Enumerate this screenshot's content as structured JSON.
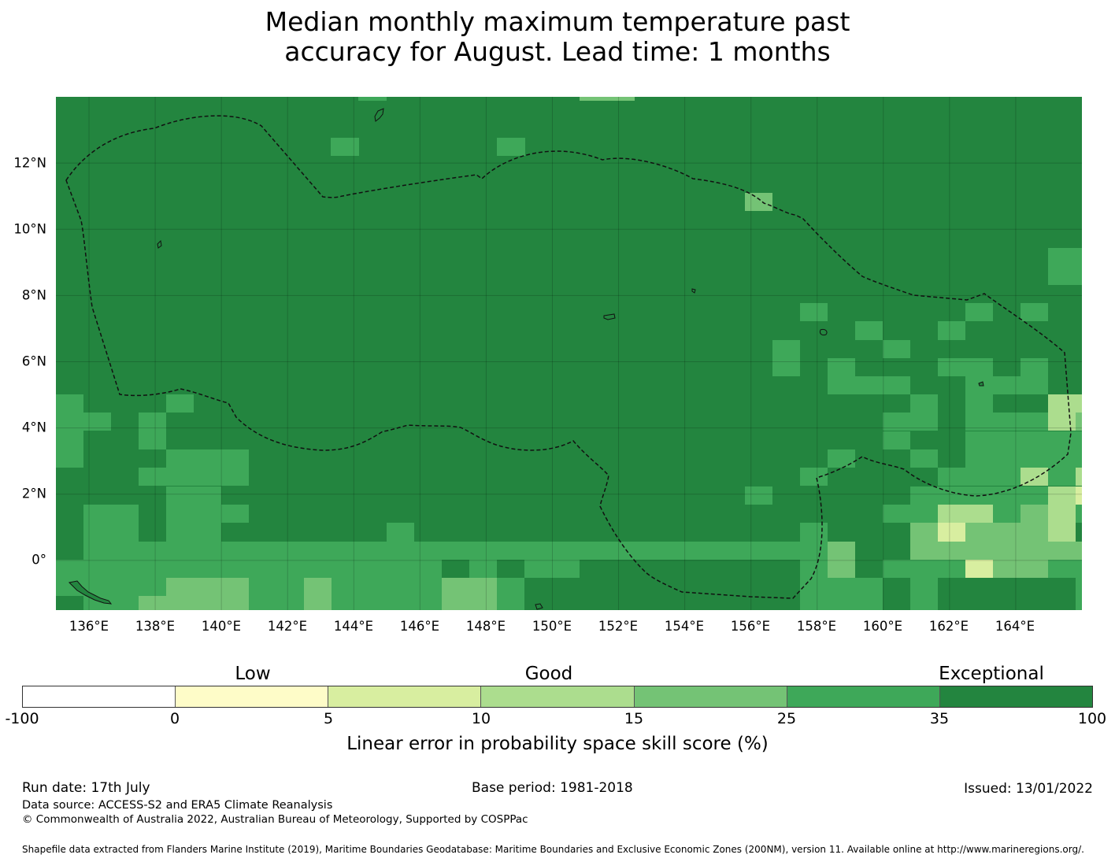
{
  "title": {
    "line1": "Median monthly maximum temperature past",
    "line2": "accuracy for August. Lead time: 1 months"
  },
  "map": {
    "lon_range": [
      135,
      166
    ],
    "lat_range": [
      -1.5,
      14
    ],
    "lon_ticks": [
      "136°E",
      "138°E",
      "140°E",
      "142°E",
      "144°E",
      "146°E",
      "148°E",
      "150°E",
      "152°E",
      "154°E",
      "156°E",
      "158°E",
      "160°E",
      "162°E",
      "164°E"
    ],
    "lat_ticks": [
      "12°N",
      "10°N",
      "8°N",
      "6°N",
      "4°N",
      "2°N",
      "0°"
    ],
    "grid": true,
    "boundary_style": "dashed",
    "base_color": "#23853f",
    "skill_categories_present": [
      "35 to 100",
      "25 to 35",
      "15 to 25",
      "10 to 15",
      "5 to 10"
    ]
  },
  "colorbar": {
    "categories": [
      "Low",
      "Good",
      "Exceptional"
    ],
    "ticks": [
      "-100",
      "0",
      "5",
      "10",
      "15",
      "25",
      "35",
      "100"
    ],
    "colors": [
      "#ffffff",
      "#fefcc8",
      "#d8eea0",
      "#acdd8e",
      "#74c375",
      "#3ea859",
      "#23853f"
    ],
    "label": "Linear error in probability space skill score (%)"
  },
  "footer": {
    "run_date": "Run date: 17th July",
    "base_period": "Base period: 1981-2018",
    "issued": "Issued: 13/01/2022",
    "data_source": "Data source: ACCESS-S2 and ERA5 Climate Reanalysis",
    "copyright": "© Commonwealth of Australia 2022, Australian Bureau of Meteorology, Supported by COSPPac",
    "shapefile": "Shapefile data extracted from Flanders Marine Institute (2019), Maritime Boundaries Geodatabase: Maritime Boundaries and Exclusive Economic Zones (200NM), version 11. Available online at http://www.marineregions.org/."
  }
}
